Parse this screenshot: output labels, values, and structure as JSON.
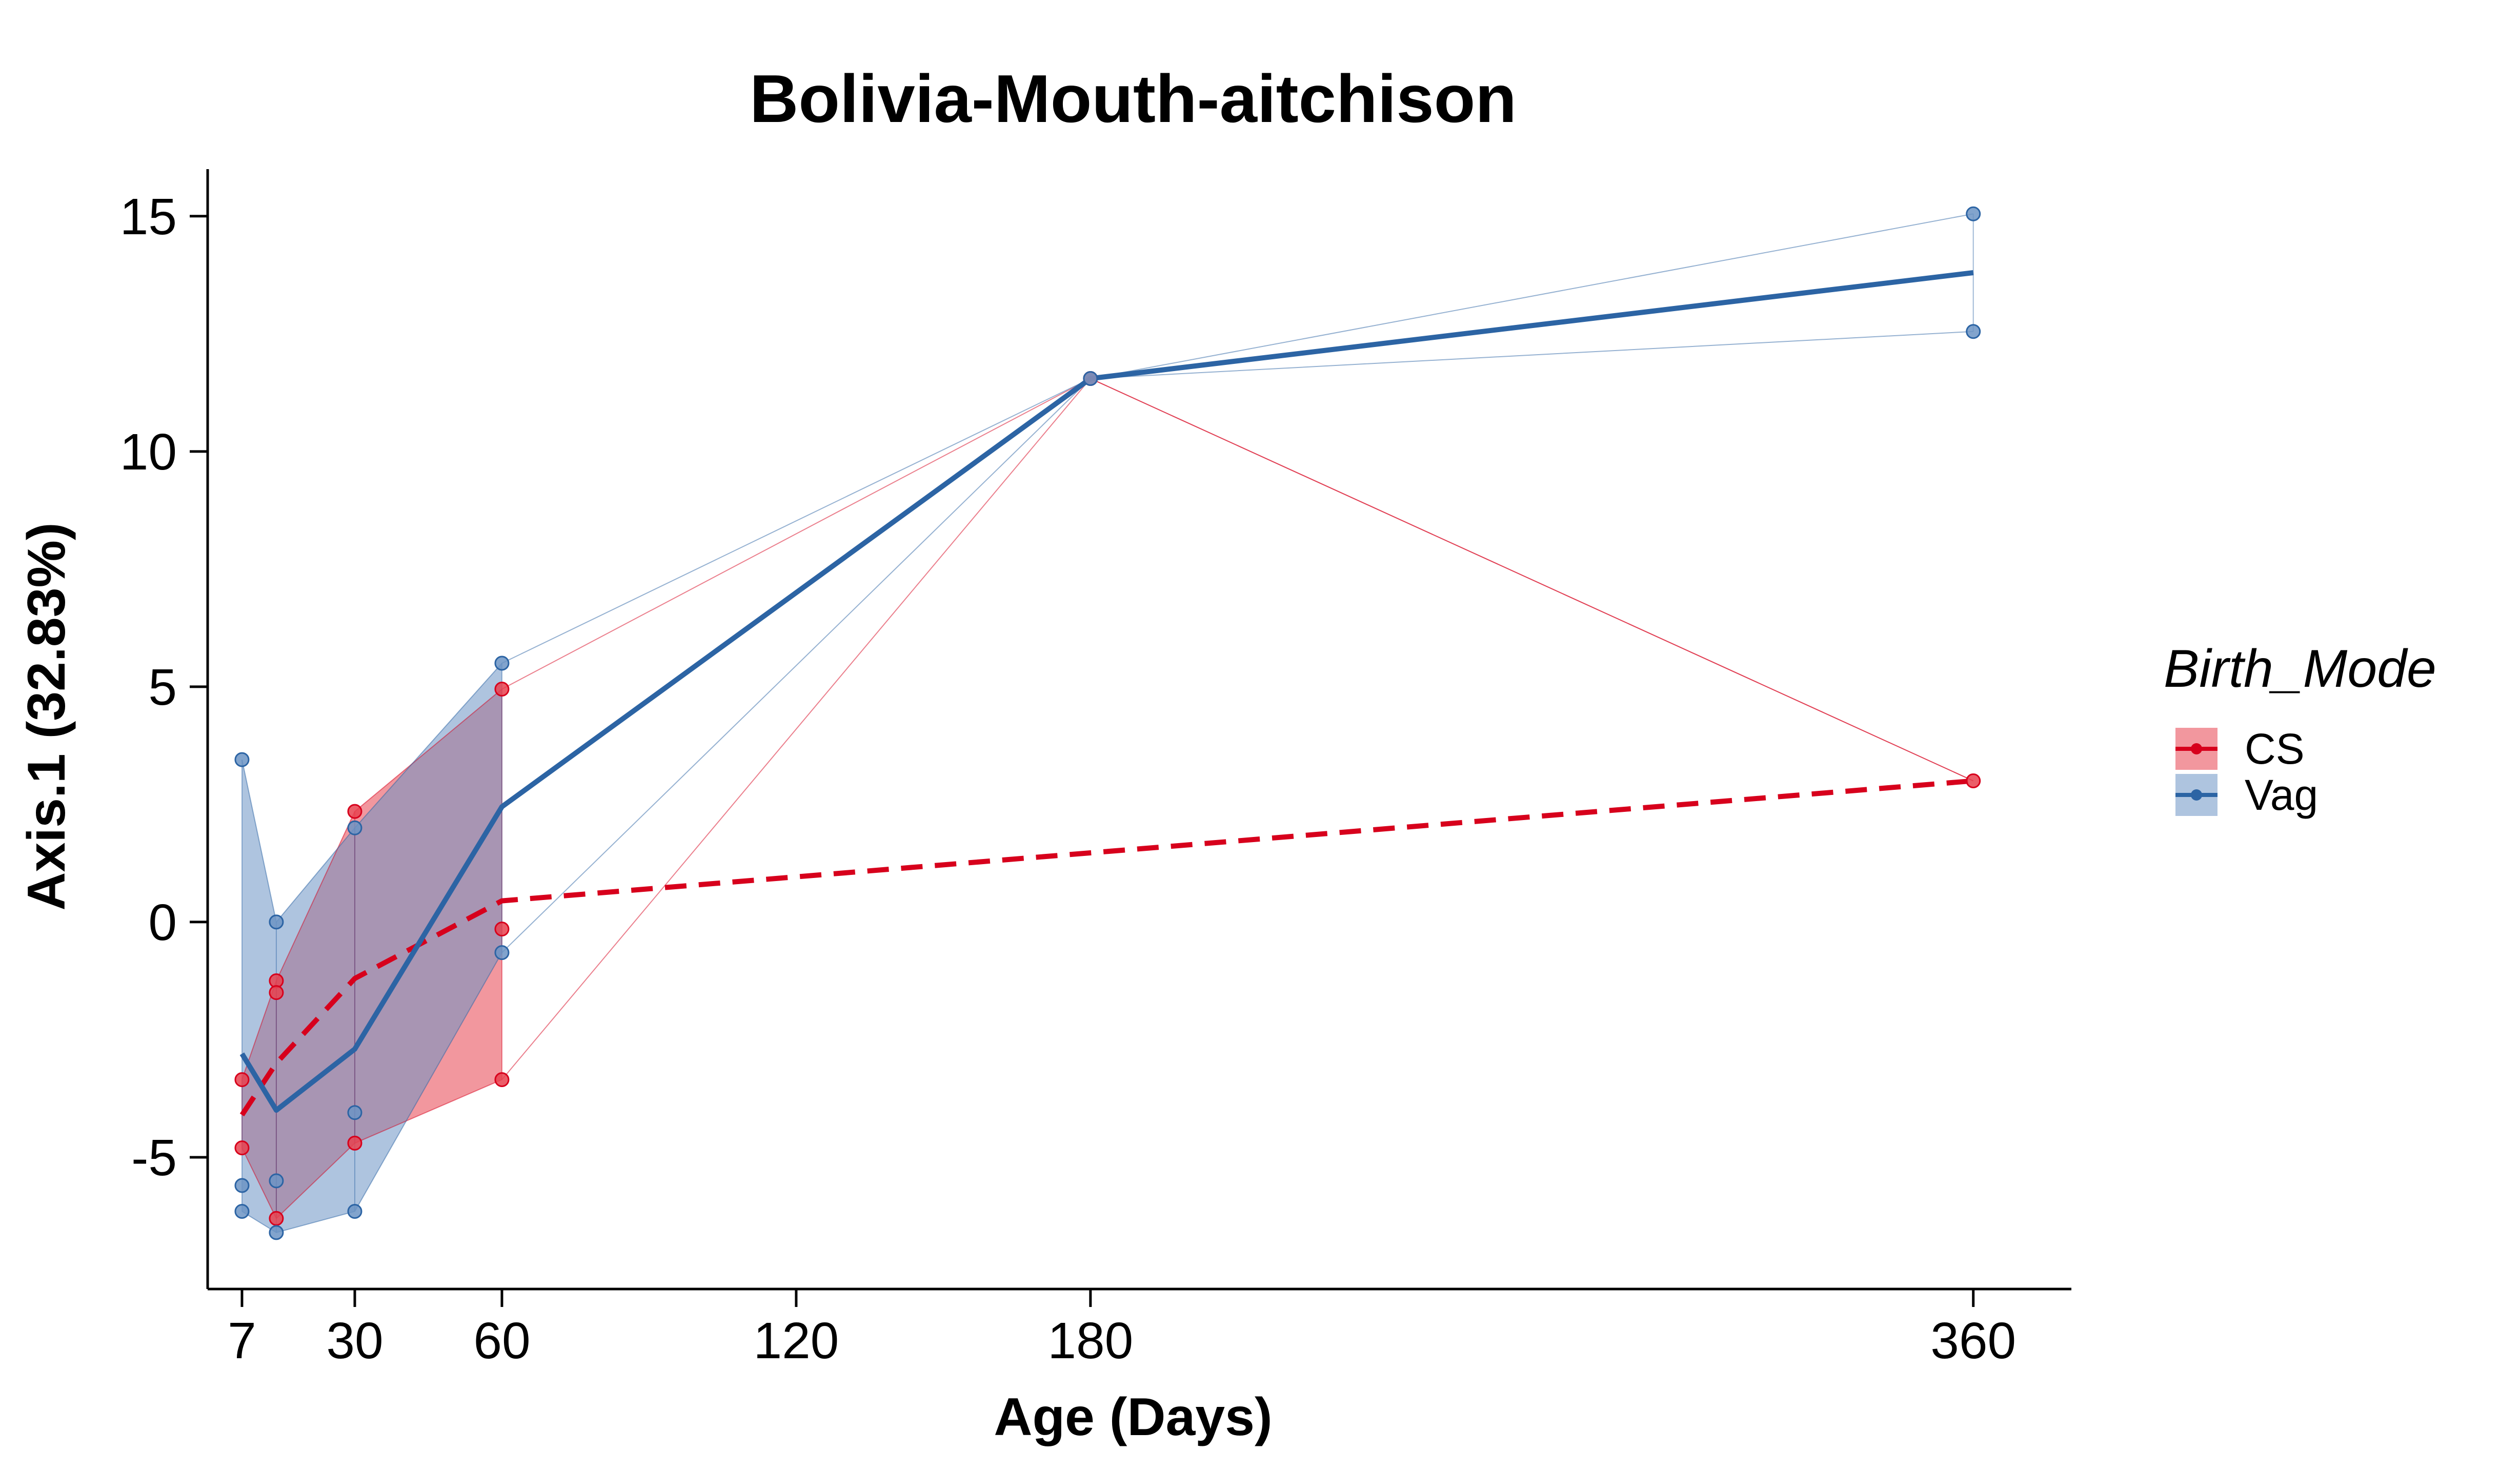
{
  "chart_data": {
    "type": "line",
    "title": "Bolivia-Mouth-aitchison",
    "xlabel": "Age (Days)",
    "ylabel": "Axis.1 (32.83%)",
    "xlim": [
      0,
      380
    ],
    "ylim": [
      -7.8,
      16.0
    ],
    "x_ticks": [
      7,
      30,
      60,
      120,
      180,
      360
    ],
    "x_tick_labels": [
      "7",
      "30",
      "60",
      "120",
      "180",
      "360"
    ],
    "y_ticks": [
      -5,
      0,
      5,
      10,
      15
    ],
    "y_tick_labels": [
      "-5",
      "0",
      "5",
      "10",
      "15"
    ],
    "grid": false,
    "legend": {
      "title": "Birth_Mode",
      "position": "right"
    },
    "series": [
      {
        "name": "CS",
        "color": "#D7001C",
        "fill": "#E8424F",
        "dash": true,
        "mean": {
          "x": [
            7,
            14,
            30,
            60,
            360
          ],
          "y": [
            -4.1,
            -3.0,
            -1.2,
            0.45,
            3.0
          ]
        },
        "points": {
          "x": [
            7,
            7,
            14,
            14,
            14,
            30,
            30,
            60,
            60,
            60,
            180,
            360
          ],
          "y": [
            -3.35,
            -4.8,
            -1.25,
            -1.5,
            -6.3,
            2.35,
            -4.7,
            4.95,
            -0.15,
            -3.35,
            11.55,
            3.0
          ]
        },
        "ribbon": {
          "x": [
            7,
            14,
            30,
            60
          ],
          "lower": [
            -4.8,
            -6.3,
            -4.7,
            -3.35
          ],
          "upper": [
            -3.35,
            -1.25,
            2.35,
            4.95
          ]
        }
      },
      {
        "name": "Vag",
        "color": "#2C64A4",
        "fill": "#6C94C4",
        "dash": false,
        "mean": {
          "x": [
            7,
            14,
            30,
            60,
            180,
            360
          ],
          "y": [
            -2.8,
            -4.0,
            -2.7,
            2.45,
            11.55,
            13.8
          ]
        },
        "points": {
          "x": [
            7,
            7,
            7,
            14,
            14,
            14,
            30,
            30,
            30,
            60,
            60,
            180,
            360,
            360
          ],
          "y": [
            3.45,
            -5.6,
            -6.15,
            0.0,
            -5.5,
            -6.6,
            2.0,
            -4.05,
            -6.15,
            5.5,
            -0.65,
            11.55,
            15.05,
            12.55
          ]
        },
        "ribbon": {
          "x": [
            7,
            14,
            30,
            60
          ],
          "lower": [
            -6.15,
            -6.6,
            -6.15,
            -0.65
          ],
          "upper": [
            3.45,
            0.0,
            2.0,
            5.5
          ]
        }
      }
    ]
  }
}
